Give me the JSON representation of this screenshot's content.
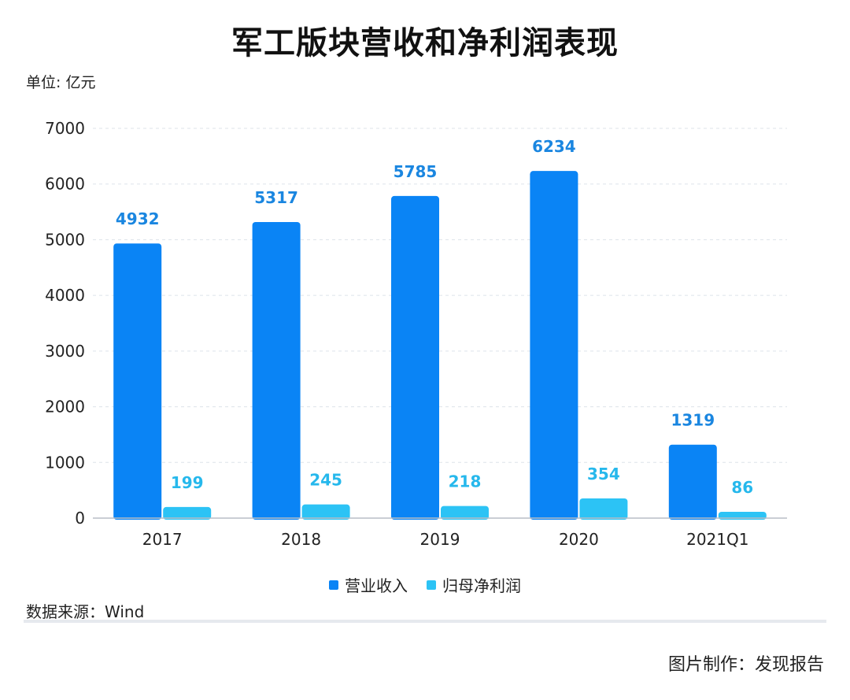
{
  "page": {
    "title": "军工版块营收和净利润表现",
    "unit_label": "单位: 亿元",
    "source": "数据来源：Wind",
    "credit": "图片制作：发现报告"
  },
  "colors": {
    "revenue": "#0a84f5",
    "revenue_label": "#1a86e0",
    "profit": "#2cc3f5",
    "profit_label": "#26b8ec",
    "grid": "#dde3ea",
    "axis": "#b8bec6"
  },
  "chart_data": {
    "type": "bar",
    "categories": [
      "2017",
      "2018",
      "2019",
      "2020",
      "2021Q1"
    ],
    "series": [
      {
        "name": "营业收入",
        "values": [
          4932,
          5317,
          5785,
          6234,
          1319
        ]
      },
      {
        "name": "归母净利润",
        "values": [
          199,
          245,
          218,
          354,
          86
        ]
      }
    ],
    "ylim": [
      0,
      7000
    ],
    "yticks": [
      "0",
      "1000",
      "2000",
      "3000",
      "4000",
      "5000",
      "6000",
      "7000"
    ],
    "grid": true,
    "legend_position": "bottom"
  }
}
